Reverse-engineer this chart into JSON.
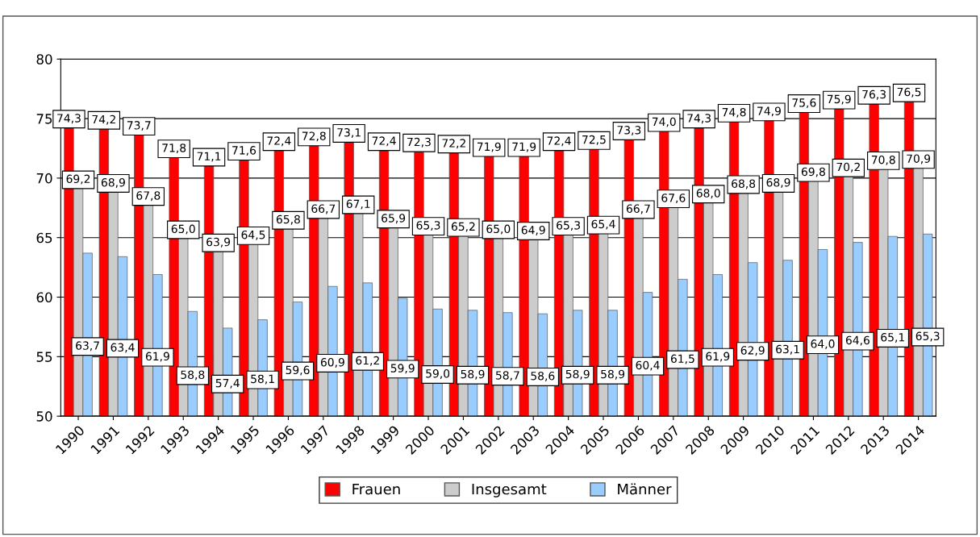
{
  "chart_data": {
    "type": "bar",
    "categories": [
      "1990",
      "1991",
      "1992",
      "1993",
      "1994",
      "1995",
      "1996",
      "1997",
      "1998",
      "1999",
      "2000",
      "2001",
      "2002",
      "2003",
      "2004",
      "2005",
      "2006",
      "2007",
      "2008",
      "2009",
      "2010",
      "2011",
      "2012",
      "2013",
      "2014"
    ],
    "series": [
      {
        "name": "Frauen",
        "color": "#ff0000",
        "values": [
          74.3,
          74.2,
          73.7,
          71.8,
          71.1,
          71.6,
          72.4,
          72.8,
          73.1,
          72.4,
          72.3,
          72.2,
          71.9,
          71.9,
          72.4,
          72.5,
          73.3,
          74.0,
          74.3,
          74.8,
          74.9,
          75.6,
          75.9,
          76.3,
          76.5
        ],
        "value_labels": [
          "74,3",
          "74,2",
          "73,7",
          "71,8",
          "71,1",
          "71,6",
          "72,4",
          "72,8",
          "73,1",
          "72,4",
          "72,3",
          "72,2",
          "71,9",
          "71,9",
          "72,4",
          "72,5",
          "73,3",
          "74,0",
          "74,3",
          "74,8",
          "74,9",
          "75,6",
          "75,9",
          "76,3",
          "76,5"
        ]
      },
      {
        "name": "Insgesamt",
        "color": "#cccccc",
        "values": [
          69.2,
          68.9,
          67.8,
          65.0,
          63.9,
          64.5,
          65.8,
          66.7,
          67.1,
          65.9,
          65.3,
          65.2,
          65.0,
          64.9,
          65.3,
          65.4,
          66.7,
          67.6,
          68.0,
          68.8,
          68.9,
          69.8,
          70.2,
          70.8,
          70.9
        ],
        "value_labels": [
          "69,2",
          "68,9",
          "67,8",
          "65,0",
          "63,9",
          "64,5",
          "65,8",
          "66,7",
          "67,1",
          "65,9",
          "65,3",
          "65,2",
          "65,0",
          "64,9",
          "65,3",
          "65,4",
          "66,7",
          "67,6",
          "68,0",
          "68,8",
          "68,9",
          "69,8",
          "70,2",
          "70,8",
          "70,9"
        ]
      },
      {
        "name": "Männer",
        "color": "#99ccff",
        "values": [
          63.7,
          63.4,
          61.9,
          58.8,
          57.4,
          58.1,
          59.6,
          60.9,
          61.2,
          59.9,
          59.0,
          58.9,
          58.7,
          58.6,
          58.9,
          58.9,
          60.4,
          61.5,
          61.9,
          62.9,
          63.1,
          64.0,
          64.6,
          65.1,
          65.3
        ],
        "value_labels": [
          "63,7",
          "63,4",
          "61,9",
          "58,8",
          "57,4",
          "58,1",
          "59,6",
          "60,9",
          "61,2",
          "59,9",
          "59,0",
          "58,9",
          "58,7",
          "58,6",
          "58,9",
          "58,9",
          "60,4",
          "61,5",
          "61,9",
          "62,9",
          "63,1",
          "64,0",
          "64,6",
          "65,1",
          "65,3"
        ]
      }
    ],
    "ylim": [
      50,
      80
    ],
    "yticks": [
      50,
      55,
      60,
      65,
      70,
      75,
      80
    ],
    "grid": "y",
    "legend": "bottom"
  }
}
